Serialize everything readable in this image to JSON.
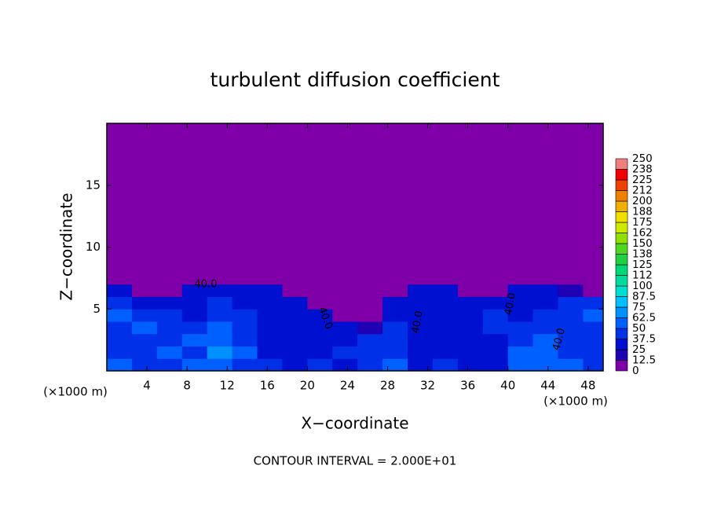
{
  "chart_data": {
    "type": "heatmap",
    "title": "turbulent diffusion coefficient",
    "x_label": "X−coordinate",
    "y_label": "Z−coordinate",
    "x_unit": "(×1000 m)",
    "footer": "CONTOUR INTERVAL = 2.000E+01",
    "contour_labels": [
      "40.0",
      "40.0",
      "40.0",
      "40.0",
      "40.0"
    ],
    "xlim": [
      0,
      49.5
    ],
    "ylim": [
      0,
      20
    ],
    "xticks": [
      4,
      8,
      12,
      16,
      20,
      24,
      28,
      32,
      36,
      40,
      44,
      48
    ],
    "yticks": [
      5,
      10,
      15
    ],
    "x_edges": [
      0,
      2.5,
      5,
      7.5,
      10,
      12.5,
      15,
      17.5,
      20,
      22.5,
      25,
      27.5,
      30,
      32.5,
      35,
      37.5,
      40,
      42.5,
      45,
      47.5,
      49.5
    ],
    "z_edges": [
      0,
      1,
      2,
      3,
      4,
      5,
      6,
      7,
      20
    ],
    "values": [
      [
        50,
        45,
        40,
        55,
        60,
        45,
        40,
        35,
        40,
        35,
        40,
        50,
        35,
        40,
        30,
        35,
        60,
        55,
        50,
        45
      ],
      [
        45,
        40,
        50,
        45,
        65,
        50,
        35,
        30,
        35,
        40,
        45,
        40,
        30,
        25,
        25,
        30,
        55,
        50,
        45,
        40
      ],
      [
        40,
        45,
        45,
        50,
        55,
        45,
        35,
        30,
        35,
        30,
        40,
        45,
        35,
        25,
        25,
        35,
        45,
        50,
        45,
        40
      ],
      [
        45,
        50,
        40,
        45,
        50,
        40,
        35,
        30,
        30,
        25,
        20,
        40,
        35,
        30,
        30,
        40,
        40,
        45,
        40,
        45
      ],
      [
        50,
        45,
        40,
        35,
        45,
        40,
        35,
        30,
        25,
        0,
        0,
        35,
        35,
        35,
        30,
        40,
        35,
        40,
        45,
        50
      ],
      [
        40,
        35,
        30,
        35,
        40,
        35,
        35,
        30,
        0,
        0,
        0,
        25,
        35,
        30,
        25,
        30,
        30,
        35,
        40,
        40
      ],
      [
        25,
        0,
        0,
        25,
        25,
        25,
        25,
        0,
        0,
        0,
        0,
        0,
        25,
        25,
        0,
        0,
        25,
        25,
        20,
        0
      ],
      [
        0,
        0,
        0,
        0,
        0,
        0,
        0,
        0,
        0,
        0,
        0,
        0,
        0,
        0,
        0,
        0,
        0,
        0,
        0,
        0
      ]
    ],
    "colorbar": {
      "levels": [
        0,
        12.5,
        25,
        37.5,
        50,
        62.5,
        75,
        87.5,
        100,
        {
          "value": 112.5,
          "label": "112"
        },
        125,
        {
          "value": 137.5,
          "label": "138"
        },
        150,
        {
          "value": 162.5,
          "label": "162"
        },
        175,
        {
          "value": 187.5,
          "label": "188"
        },
        200,
        {
          "value": 212.5,
          "label": "212"
        },
        225,
        {
          "value": 237.5,
          "label": "238"
        },
        250
      ],
      "colors": [
        "#7f00a8",
        "#2000b4",
        "#0010d0",
        "#0030e8",
        "#0060ff",
        "#0090ff",
        "#00c0ff",
        "#00e0d0",
        "#00dca0",
        "#00d878",
        "#20d040",
        "#50d820",
        "#90e000",
        "#d0e800",
        "#f0e000",
        "#f0b000",
        "#f08000",
        "#f04000",
        "#f00000",
        "#f08080"
      ]
    }
  }
}
